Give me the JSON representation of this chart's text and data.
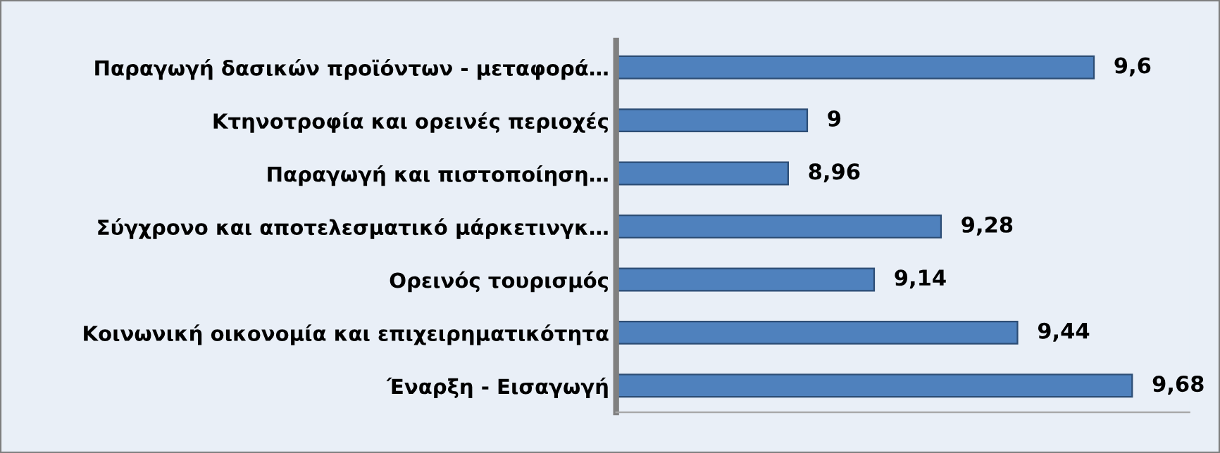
{
  "chart_data": {
    "type": "bar",
    "orientation": "horizontal",
    "categories": [
      "Παραγωγή δασικών προϊόντων - μεταφορά…",
      "Κτηνοτροφία και ορεινές περιοχές",
      "Παραγωγή και πιστοποίηση…",
      "Σύγχρονο και αποτελεσματικό μάρκετινγκ…",
      "Ορεινός τουρισμός",
      "Κοινωνική οικονομία και επιχειρηματικότητα",
      "Έναρξη - Εισαγωγή"
    ],
    "values": [
      9.6,
      9.0,
      8.96,
      9.28,
      9.14,
      9.44,
      9.68
    ],
    "value_labels": [
      "9,6",
      "9",
      "8,96",
      "9,28",
      "9,14",
      "9,44",
      "9,68"
    ],
    "color": "#4f81bd",
    "xlim": [
      8.6,
      9.8
    ],
    "grid": false,
    "legend": false,
    "tick_labels": "y"
  }
}
